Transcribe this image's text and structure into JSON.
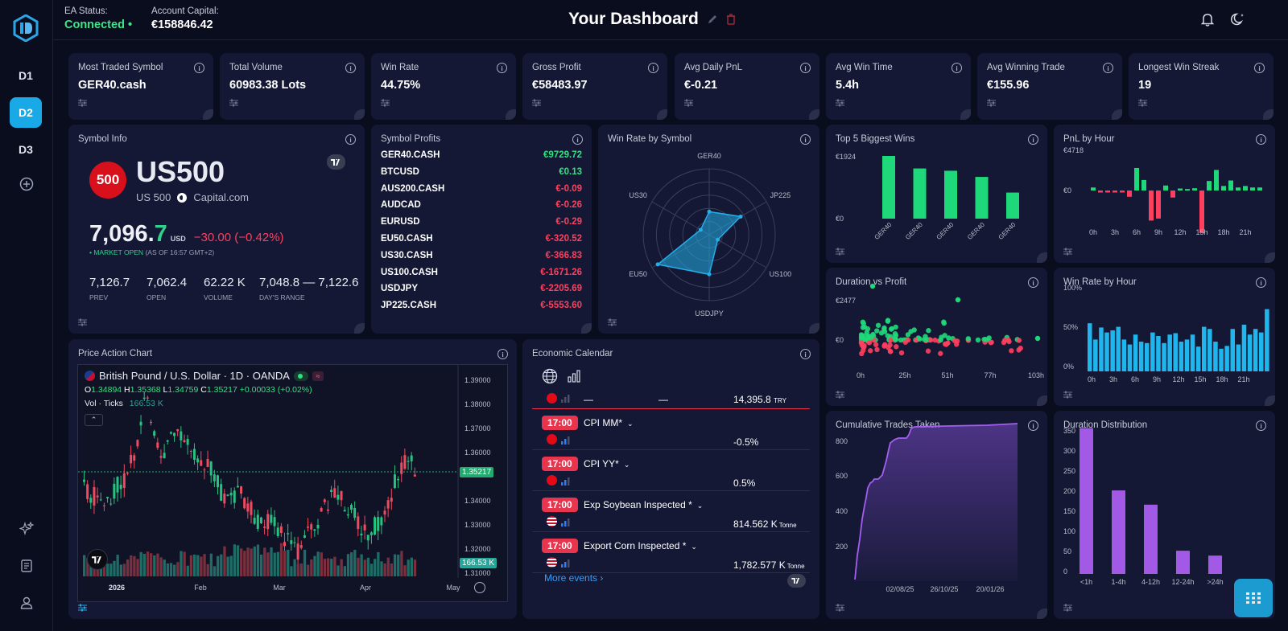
{
  "sidebar": {
    "items": [
      {
        "label": "D1"
      },
      {
        "label": "D2"
      },
      {
        "label": "D3"
      }
    ]
  },
  "header": {
    "ea_status_label": "EA Status:",
    "ea_status_value": "Connected •",
    "capital_label": "Account Capital:",
    "capital_value": "€158846.42",
    "title": "Your Dashboard"
  },
  "kpis": [
    {
      "title": "Most Traded Symbol",
      "value": "GER40.cash"
    },
    {
      "title": "Total Volume",
      "value": "60983.38 Lots"
    },
    {
      "title": "Win Rate",
      "value": "44.75%"
    },
    {
      "title": "Gross Profit",
      "value": "€58483.97"
    },
    {
      "title": "Avg Daily PnL",
      "value": "€-0.21"
    },
    {
      "title": "Avg Win Time",
      "value": "5.4h"
    },
    {
      "title": "Avg Winning Trade",
      "value": "€155.96"
    },
    {
      "title": "Longest Win Streak",
      "value": "19"
    }
  ],
  "symbol_info": {
    "title": "Symbol Info",
    "badge": "500",
    "symbol": "US500",
    "subtitle": "US 500",
    "broker": "Capital.com",
    "price_main": "7,096.",
    "price_last": "7",
    "currency": "USD",
    "change": "−30.00 (−0.42%)",
    "market_status": "• MARKET OPEN",
    "as_of": "(AS OF 16:57 GMT+2)",
    "stats": [
      {
        "value": "7,126.7",
        "label": "PREV"
      },
      {
        "value": "7,062.4",
        "label": "OPEN"
      },
      {
        "value": "62.22 K",
        "label": "VOLUME"
      },
      {
        "value": "7,048.8 — 7,122.6",
        "label": "DAY'S RANGE"
      }
    ]
  },
  "symbol_profits": {
    "title": "Symbol Profits",
    "rows": [
      {
        "symbol": "GER40.CASH",
        "profit": "€9729.72",
        "positive": true
      },
      {
        "symbol": "BTCUSD",
        "profit": "€0.13",
        "positive": true
      },
      {
        "symbol": "AUS200.CASH",
        "profit": "€-0.09",
        "positive": false
      },
      {
        "symbol": "AUDCAD",
        "profit": "€-0.26",
        "positive": false
      },
      {
        "symbol": "EURUSD",
        "profit": "€-0.29",
        "positive": false
      },
      {
        "symbol": "EU50.CASH",
        "profit": "€-320.52",
        "positive": false
      },
      {
        "symbol": "US30.CASH",
        "profit": "€-366.83",
        "positive": false
      },
      {
        "symbol": "US100.CASH",
        "profit": "€-1671.26",
        "positive": false
      },
      {
        "symbol": "USDJPY",
        "profit": "€-2205.69",
        "positive": false
      },
      {
        "symbol": "JP225.CASH",
        "profit": "€-5553.60",
        "positive": false
      }
    ]
  },
  "win_rate_symbol": {
    "title": "Win Rate by Symbol",
    "axes": [
      "GER40",
      "JP225",
      "US100",
      "USDJPY",
      "EU50",
      "US30"
    ],
    "values": [
      0.35,
      0.55,
      0.15,
      0.6,
      0.9,
      0.15
    ]
  },
  "top_wins": {
    "title": "Top 5 Biggest Wins",
    "y_labels": [
      "€1924",
      "€0"
    ],
    "categories": [
      "GER40",
      "GER40",
      "GER40",
      "GER40",
      "GER40"
    ],
    "values": [
      1924,
      1540,
      1470,
      1280,
      800
    ]
  },
  "pnl_hour": {
    "title": "PnL by Hour",
    "y_labels": [
      "€4718",
      "€0"
    ],
    "x_labels": [
      "0h",
      "3h",
      "6h",
      "9h",
      "12h",
      "15h",
      "18h",
      "21h"
    ],
    "values": [
      120,
      -80,
      -80,
      -80,
      -80,
      -250,
      900,
      420,
      -1200,
      -1120,
      200,
      -280,
      80,
      60,
      90,
      -1700,
      380,
      820,
      180,
      400,
      120,
      180,
      120,
      120
    ]
  },
  "duration_profit": {
    "title": "Duration vs Profit",
    "y_labels": [
      "€2477",
      "€0"
    ],
    "x_labels": [
      "0h",
      "25h",
      "51h",
      "77h",
      "103h"
    ]
  },
  "win_rate_hour": {
    "title": "Win Rate by Hour",
    "y_labels": [
      "100%",
      "50%",
      "0%"
    ],
    "x_labels": [
      "0h",
      "3h",
      "6h",
      "9h",
      "12h",
      "15h",
      "18h",
      "21h"
    ],
    "values": [
      0.68,
      0.45,
      0.62,
      0.55,
      0.58,
      0.63,
      0.45,
      0.38,
      0.52,
      0.42,
      0.4,
      0.55,
      0.5,
      0.4,
      0.52,
      0.54,
      0.42,
      0.45,
      0.52,
      0.35,
      0.63,
      0.6,
      0.42,
      0.32,
      0.36,
      0.6,
      0.38,
      0.66,
      0.52,
      0.6,
      0.55,
      0.88
    ]
  },
  "price_chart": {
    "title": "Price Action Chart",
    "instrument": "British Pound / U.S. Dollar · 1D · OANDA",
    "ohlc_o": "1.34894",
    "ohlc_h": "1.35368",
    "ohlc_l": "1.34759",
    "ohlc_c": "1.35217",
    "ohlc_change": "+0.00033 (+0.02%)",
    "vol_label": "Vol · Ticks",
    "vol_value": "166.53 K",
    "price_levels": [
      "1.39000",
      "1.38000",
      "1.37000",
      "1.36000",
      "1.34000",
      "1.33000",
      "1.32000",
      "1.31000"
    ],
    "last_price": "1.35217",
    "last_volume": "166.53 K",
    "x_labels": [
      "2026",
      "Feb",
      "Mar",
      "Apr",
      "May"
    ]
  },
  "econ_calendar": {
    "title": "Economic Calendar",
    "first_row": {
      "actual": "—",
      "forecast": "—",
      "value": "14,395.8",
      "unit": "TRY"
    },
    "events": [
      {
        "time": "17:00",
        "name": "CPI MM*",
        "value": "-0.5%",
        "unit": ""
      },
      {
        "time": "17:00",
        "name": "CPI YY*",
        "value": "0.5%",
        "unit": ""
      },
      {
        "time": "17:00",
        "name": "Exp Soybean Inspected *",
        "value": "814.562 K",
        "unit": "Tonne"
      },
      {
        "time": "17:00",
        "name": "Export Corn Inspected *",
        "value": "1,782.577 K",
        "unit": "Tonne"
      }
    ],
    "more_link": "More events"
  },
  "cumulative": {
    "title": "Cumulative Trades Taken",
    "y_labels": [
      "800",
      "600",
      "400",
      "200"
    ],
    "x_labels": [
      "02/08/25",
      "26/10/25",
      "20/01/26"
    ]
  },
  "duration_dist": {
    "title": "Duration Distribution",
    "y_labels": [
      "350",
      "300",
      "250",
      "200",
      "150",
      "100",
      "50",
      "0"
    ],
    "categories": [
      "<1h",
      "1-4h",
      "4-12h",
      "12-24h",
      ">24h"
    ],
    "values": [
      358,
      205,
      170,
      57,
      45
    ]
  },
  "colors": {
    "accent": "#19a9e6",
    "positive": "#2ee37f",
    "negative": "#ff3f5d",
    "purple": "#a259e6"
  }
}
